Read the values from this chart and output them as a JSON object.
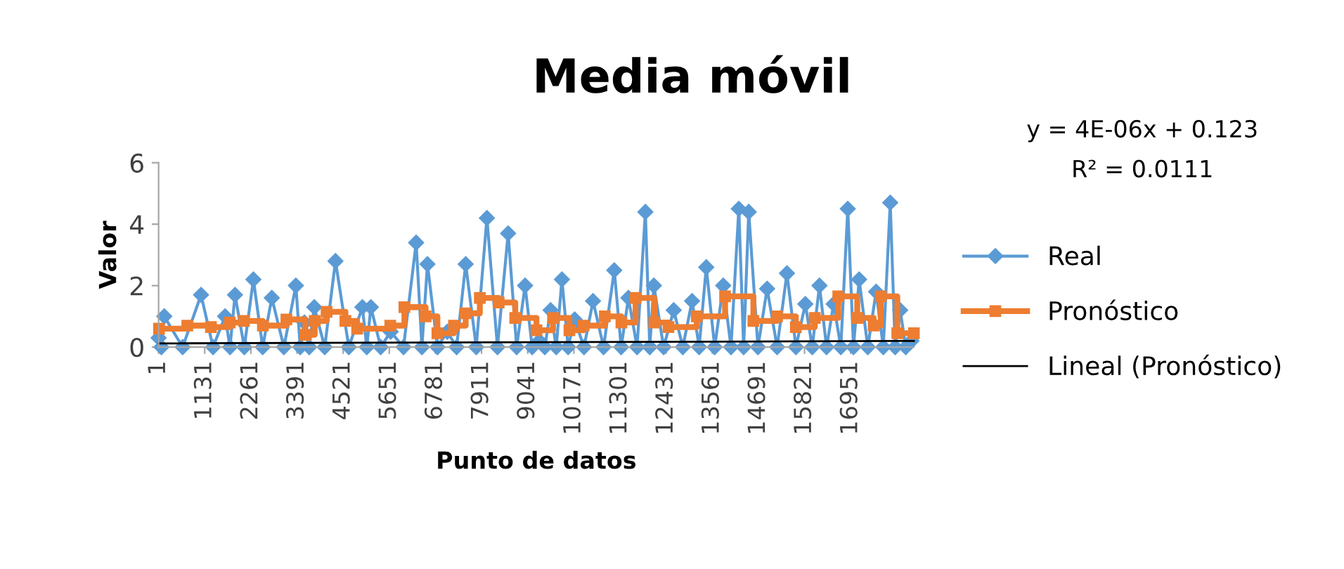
{
  "chart_data": {
    "type": "line",
    "title": "Media móvil",
    "xlabel": "Punto de datos",
    "ylabel": "Valor",
    "annotations": [
      "y = 4E-06x + 0.123",
      "R² = 0.0111"
    ],
    "xlim": [
      1,
      18500
    ],
    "xticks": [
      1,
      1131,
      2261,
      3391,
      4521,
      5651,
      6781,
      7911,
      9041,
      10171,
      11301,
      12431,
      13561,
      14691,
      15821,
      16951
    ],
    "ylim": [
      0,
      6
    ],
    "yticks": [
      0,
      2,
      4,
      6
    ],
    "grid": false,
    "legend": "right",
    "series": [
      {
        "name": "Real",
        "color": "#5b9bd5",
        "marker": "diamond",
        "x": [
          1,
          70,
          140,
          590,
          1041,
          1335,
          1630,
          1750,
          1873,
          2100,
          2323,
          2550,
          2774,
          3070,
          3363,
          3470,
          3571,
          3690,
          3814,
          4070,
          4333,
          4660,
          4992,
          5100,
          5200,
          5440,
          5685,
          6000,
          6309,
          6450,
          6586,
          6830,
          7071,
          7300,
          7522,
          7780,
          8042,
          8300,
          8562,
          8770,
          8977,
          9150,
          9324,
          9460,
          9602,
          9740,
          9879,
          10030,
          10191,
          10420,
          10641,
          10900,
          11161,
          11330,
          11508,
          11720,
          11923,
          12030,
          12131,
          12370,
          12617,
          12840,
          13067,
          13240,
          13414,
          13620,
          13830,
          14020,
          14211,
          14330,
          14454,
          14680,
          14905,
          15150,
          15390,
          15610,
          15840,
          16010,
          16187,
          16360,
          16534,
          16710,
          16880,
          17020,
          17158,
          17370,
          17574,
          17750,
          17920,
          18040,
          18163,
          18300,
          18440
        ],
        "values": [
          0.3,
          0,
          1.0,
          0,
          1.7,
          0,
          1.0,
          0,
          1.7,
          0,
          2.2,
          0,
          1.6,
          0,
          2.0,
          0,
          0.8,
          0,
          1.3,
          0,
          2.8,
          0,
          1.3,
          0,
          1.3,
          0,
          0.5,
          0,
          3.4,
          0,
          2.7,
          0,
          0.5,
          0,
          2.7,
          0,
          4.2,
          0,
          3.7,
          0,
          2.0,
          0,
          0.2,
          0,
          1.2,
          0,
          2.2,
          0,
          0.9,
          0,
          1.5,
          0,
          2.5,
          0,
          1.6,
          0,
          4.4,
          0,
          2.0,
          0,
          1.2,
          0,
          1.5,
          0,
          2.6,
          0,
          2.0,
          0,
          4.5,
          0,
          4.4,
          0,
          1.9,
          0,
          2.4,
          0,
          1.4,
          0,
          2.0,
          0,
          1.4,
          0,
          4.5,
          0,
          2.2,
          0,
          1.8,
          0,
          4.7,
          0,
          1.2,
          0,
          0.2
        ]
      },
      {
        "name": "Pronóstico",
        "type": "step",
        "color": "#ed7d31",
        "marker": "square",
        "x": [
          11,
          704,
          1283,
          1744,
          2091,
          2555,
          3131,
          3595,
          3824,
          4115,
          4576,
          4864,
          5675,
          6021,
          6541,
          6829,
          7235,
          7522,
          7869,
          8330,
          8736,
          9256,
          9661,
          10063,
          10410,
          10930,
          11336,
          11682,
          12142,
          12489,
          13182,
          13875,
          14568,
          15147,
          15608,
          16072,
          16647,
          17112,
          17514,
          17687,
          18093,
          18499
        ],
        "values": [
          0.6,
          0.7,
          0.65,
          0.8,
          0.85,
          0.7,
          0.9,
          0.4,
          0.85,
          1.15,
          0.85,
          0.6,
          0.7,
          1.3,
          1.0,
          0.45,
          0.7,
          1.1,
          1.6,
          1.45,
          0.95,
          0.55,
          0.95,
          0.55,
          0.7,
          1.0,
          0.8,
          1.6,
          0.8,
          0.65,
          1.0,
          1.65,
          0.85,
          1.0,
          0.65,
          0.95,
          1.65,
          0.95,
          0.7,
          1.65,
          0.45,
          0.45
        ]
      },
      {
        "name": "Lineal (Pronóstico)",
        "color": "#000000",
        "marker": "none",
        "x": [
          1,
          18499
        ],
        "values": [
          0.12,
          0.2
        ]
      }
    ]
  }
}
